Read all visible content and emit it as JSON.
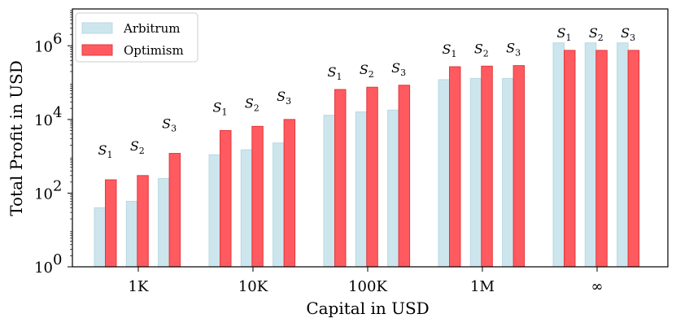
{
  "chart_data": {
    "type": "bar",
    "xlabel": "Capital in USD",
    "ylabel": "Total Profit in USD",
    "yscale": "log",
    "ylim": [
      1,
      10000000
    ],
    "y_ticks": [
      {
        "value": 1,
        "base": "10",
        "exp": "0"
      },
      {
        "value": 100,
        "base": "10",
        "exp": "2"
      },
      {
        "value": 10000,
        "base": "10",
        "exp": "4"
      },
      {
        "value": 1000000,
        "base": "10",
        "exp": "6"
      }
    ],
    "groups": [
      "1K",
      "10K",
      "100K",
      "1M",
      "∞"
    ],
    "strategy_labels": [
      "S",
      "S",
      "S"
    ],
    "strategy_subscripts": [
      "1",
      "2",
      "3"
    ],
    "legend_position": "top-left",
    "series": [
      {
        "name": "Arbitrum",
        "color": "#cde6ee",
        "values": [
          [
            40,
            60,
            250
          ],
          [
            1100,
            1500,
            2300
          ],
          [
            13000,
            16000,
            18000
          ],
          [
            120000,
            130000,
            130000
          ],
          [
            1200000,
            1200000,
            1200000
          ]
        ]
      },
      {
        "name": "Optimism",
        "color": "#ff5a5f",
        "values": [
          [
            230,
            300,
            1200
          ],
          [
            5000,
            6500,
            10000
          ],
          [
            65000,
            75000,
            85000
          ],
          [
            270000,
            280000,
            290000
          ],
          [
            750000,
            750000,
            750000
          ]
        ]
      }
    ]
  }
}
